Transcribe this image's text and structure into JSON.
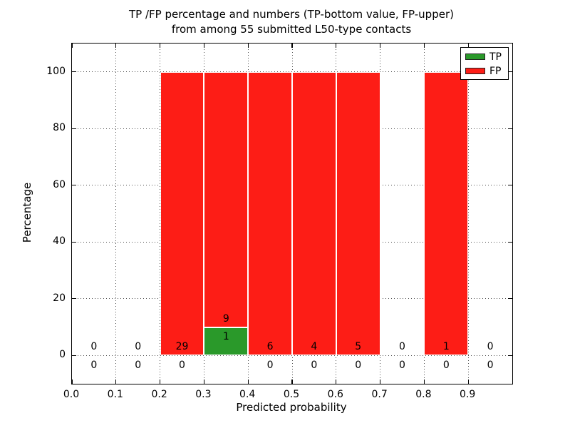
{
  "figure": {
    "title_line1": "TP /FP percentage and numbers (TP-bottom value, FP-upper)",
    "title_line2": "from among 55 submitted L50-type contacts"
  },
  "chart_data": {
    "type": "bar",
    "stacked": true,
    "title": "TP /FP percentage and numbers (TP-bottom value, FP-upper)\nfrom among 55 submitted L50-type contacts",
    "xlabel": "Predicted probability",
    "ylabel": "Percentage",
    "xlim": [
      0.0,
      1.0
    ],
    "ylim": [
      -10,
      110
    ],
    "xticks": [
      0.0,
      0.1,
      0.2,
      0.3,
      0.4,
      0.5,
      0.6,
      0.7,
      0.8,
      0.9
    ],
    "xtick_labels": [
      "0.0",
      "0.1",
      "0.2",
      "0.3",
      "0.4",
      "0.5",
      "0.6",
      "0.7",
      "0.8",
      "0.9"
    ],
    "yticks": [
      0,
      20,
      40,
      60,
      80,
      100
    ],
    "ytick_labels": [
      "0",
      "20",
      "40",
      "60",
      "80",
      "100"
    ],
    "grid": "dotted",
    "total_contacts": 55,
    "legend": {
      "position": "upper-right",
      "entries": [
        {
          "label": "TP",
          "color": "#2a992a"
        },
        {
          "label": "FP",
          "color": "#fd1d16"
        }
      ]
    },
    "bins": [
      {
        "x_start": 0.0,
        "x_end": 0.1,
        "tp_count": 0,
        "fp_count": 0,
        "tp_pct": 0,
        "fp_pct": 0
      },
      {
        "x_start": 0.1,
        "x_end": 0.2,
        "tp_count": 0,
        "fp_count": 0,
        "tp_pct": 0,
        "fp_pct": 0
      },
      {
        "x_start": 0.2,
        "x_end": 0.3,
        "tp_count": 0,
        "fp_count": 29,
        "tp_pct": 0,
        "fp_pct": 100
      },
      {
        "x_start": 0.3,
        "x_end": 0.4,
        "tp_count": 1,
        "fp_count": 9,
        "tp_pct": 10,
        "fp_pct": 90
      },
      {
        "x_start": 0.4,
        "x_end": 0.5,
        "tp_count": 0,
        "fp_count": 6,
        "tp_pct": 0,
        "fp_pct": 100
      },
      {
        "x_start": 0.5,
        "x_end": 0.6,
        "tp_count": 0,
        "fp_count": 4,
        "tp_pct": 0,
        "fp_pct": 100
      },
      {
        "x_start": 0.6,
        "x_end": 0.7,
        "tp_count": 0,
        "fp_count": 5,
        "tp_pct": 0,
        "fp_pct": 100
      },
      {
        "x_start": 0.7,
        "x_end": 0.8,
        "tp_count": 0,
        "fp_count": 0,
        "tp_pct": 0,
        "fp_pct": 0
      },
      {
        "x_start": 0.8,
        "x_end": 0.9,
        "tp_count": 0,
        "fp_count": 1,
        "tp_pct": 0,
        "fp_pct": 100
      },
      {
        "x_start": 0.9,
        "x_end": 1.0,
        "tp_count": 0,
        "fp_count": 0,
        "tp_pct": 0,
        "fp_pct": 0
      }
    ],
    "colors": {
      "tp": "#2a992a",
      "fp": "#fd1d16",
      "grid": "#555555",
      "text": "#000000",
      "background": "#ffffff"
    }
  }
}
